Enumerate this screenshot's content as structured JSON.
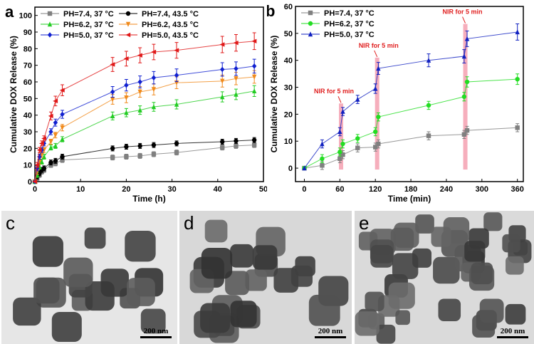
{
  "chart_data": [
    {
      "panel_label": "a",
      "type": "line",
      "xlabel": "Time (h)",
      "ylabel": "Cumulative DOX Release (%)",
      "xlim": [
        0,
        50
      ],
      "ylim": [
        0,
        105
      ],
      "xticks": [
        0,
        10,
        20,
        30,
        40,
        50
      ],
      "yticks": [
        0,
        10,
        20,
        30,
        40,
        50,
        60,
        70,
        80,
        90,
        100
      ],
      "legend_position": "top-left",
      "x": [
        0,
        0.5,
        1,
        1.5,
        2,
        3.5,
        4.5,
        6,
        17,
        20,
        23,
        26,
        31,
        41,
        44,
        48
      ],
      "series": [
        {
          "name": "PH=7.4, 37 °C",
          "color": "#808080",
          "marker": "square",
          "values": [
            0,
            2,
            4,
            6,
            7,
            10,
            11,
            13,
            14.5,
            15,
            15.5,
            16.5,
            17.5,
            20.5,
            21.5,
            22
          ]
        },
        {
          "name": "PH=7.4, 43.5 °C",
          "color": "#000000",
          "marker": "circle",
          "values": [
            0,
            3,
            5,
            7,
            8,
            11.5,
            12.5,
            15,
            20,
            21,
            21.5,
            22,
            23,
            24,
            24.5,
            25
          ]
        },
        {
          "name": "PH=6.2, 37 °C",
          "color": "#22cc22",
          "marker": "triangle-up",
          "values": [
            0,
            4,
            9,
            12,
            15,
            20.5,
            21.5,
            25.5,
            39.5,
            41.5,
            43,
            45,
            46.5,
            51,
            52.5,
            54.5
          ]
        },
        {
          "name": "PH=6.2, 43.5 °C",
          "color": "#f08a1c",
          "marker": "triangle-down",
          "values": [
            0,
            6,
            12,
            16,
            19,
            24,
            28,
            32.5,
            49.5,
            50.5,
            54,
            55.5,
            59.5,
            60.5,
            62,
            63
          ]
        },
        {
          "name": "PH=5.0, 37 °C",
          "color": "#1020d0",
          "marker": "diamond",
          "values": [
            0,
            8,
            15,
            19,
            23,
            30,
            35.5,
            40.5,
            54,
            58,
            60,
            62.5,
            64,
            67.5,
            68,
            69.5
          ]
        },
        {
          "name": "PH=5.0, 43.5 °C",
          "color": "#e01818",
          "marker": "triangle-left",
          "values": [
            0,
            10,
            19,
            23,
            26,
            39.5,
            48.5,
            55,
            70.5,
            74,
            76,
            78,
            79,
            82.5,
            83.5,
            84.5
          ]
        }
      ]
    },
    {
      "panel_label": "b",
      "type": "line",
      "xlabel": "Time (min)",
      "ylabel": "Cumulative DOX Release (%)",
      "xlim": [
        -15,
        370
      ],
      "ylim": [
        -5,
        60
      ],
      "xticks": [
        0,
        60,
        120,
        180,
        240,
        300,
        360
      ],
      "yticks": [
        0,
        10,
        20,
        30,
        40,
        50,
        60
      ],
      "legend_position": "top-left",
      "x": [
        0,
        30,
        60,
        65,
        90,
        120,
        125,
        210,
        270,
        275,
        360
      ],
      "series": [
        {
          "name": "PH=7.4, 37 °C",
          "color": "#808080",
          "marker": "square",
          "values": [
            0,
            1,
            3.5,
            5,
            7.5,
            7.8,
            9,
            12,
            12.5,
            14,
            15
          ]
        },
        {
          "name": "PH=6.2, 37 °C",
          "color": "#22dd22",
          "marker": "circle",
          "values": [
            0,
            3.5,
            6,
            9,
            11,
            13.5,
            19,
            23.3,
            26.5,
            32,
            33
          ]
        },
        {
          "name": "PH=5.0, 37 °C",
          "color": "#1020c0",
          "marker": "triangle-up",
          "values": [
            0,
            9,
            13.5,
            21,
            25.5,
            29.5,
            37,
            40,
            41.5,
            48,
            50.5
          ]
        }
      ],
      "annotations": [
        {
          "text": "NIR for 5 min",
          "x": 62,
          "top": 24
        },
        {
          "text": "NIR for 5 min",
          "x": 123,
          "top": 41
        },
        {
          "text": "NIR for 5 min",
          "x": 272,
          "top": 53.5
        }
      ],
      "annotation_color": "#e02020",
      "highlight_color": "#f4a0b0"
    }
  ],
  "images": [
    {
      "panel_label": "c",
      "scale_bar": "200 nm"
    },
    {
      "panel_label": "d",
      "scale_bar": "200 nm"
    },
    {
      "panel_label": "e",
      "scale_bar": "200 nm"
    }
  ]
}
